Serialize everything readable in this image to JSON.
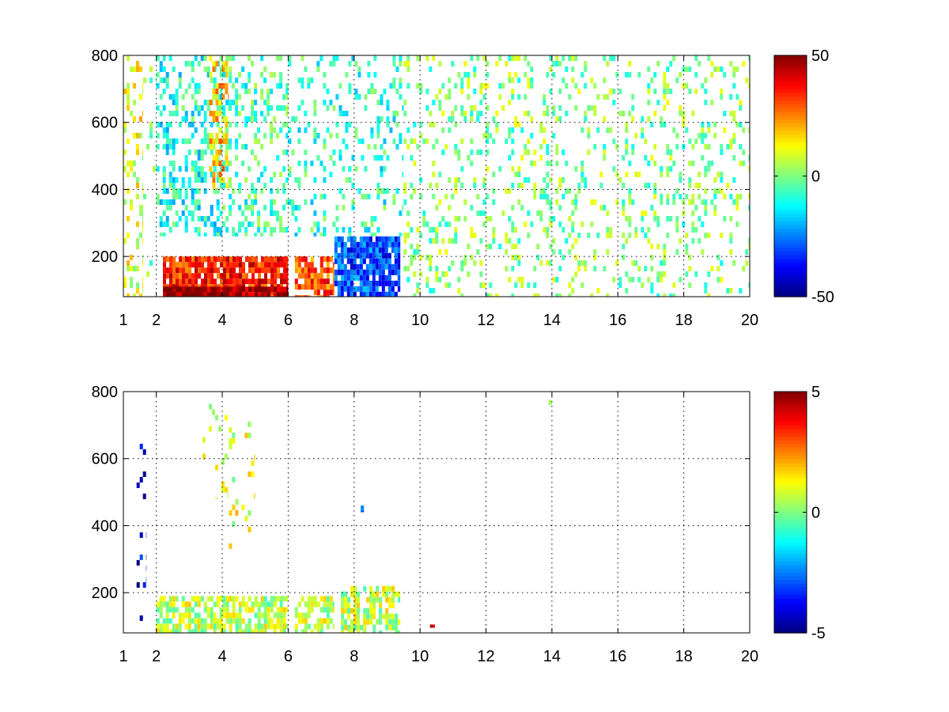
{
  "chart_data": [
    {
      "type": "heatmap",
      "title": "",
      "xlabel": "",
      "ylabel": "",
      "xlim": [
        1,
        20
      ],
      "ylim": [
        80,
        800
      ],
      "x_ticks": [
        "1",
        "2",
        "4",
        "6",
        "8",
        "10",
        "12",
        "14",
        "16",
        "18",
        "20"
      ],
      "y_ticks": [
        "200",
        "400",
        "600",
        "800"
      ],
      "grid": true,
      "colormap": "jet",
      "clim": [
        -50,
        50
      ],
      "colorbar_ticks": [
        "50",
        "0",
        "-50"
      ],
      "regions": [
        {
          "x": [
            1.0,
            1.6
          ],
          "y": [
            80,
            800
          ],
          "value": 10,
          "density": 0.3
        },
        {
          "x": [
            1.6,
            2.0
          ],
          "y": [
            80,
            800
          ],
          "value": -4,
          "density": 0.05
        },
        {
          "x": [
            2.0,
            4.0
          ],
          "y": [
            260,
            800
          ],
          "value": -10,
          "density": 0.35
        },
        {
          "x": [
            3.6,
            4.2
          ],
          "y": [
            400,
            800
          ],
          "value": 18,
          "density": 0.45
        },
        {
          "x": [
            4.0,
            6.0
          ],
          "y": [
            260,
            800
          ],
          "value": -6,
          "density": 0.3
        },
        {
          "x": [
            6.0,
            9.5
          ],
          "y": [
            260,
            800
          ],
          "value": -8,
          "density": 0.18
        },
        {
          "x": [
            9.5,
            20.0
          ],
          "y": [
            80,
            800
          ],
          "value": 0,
          "density": 0.18
        },
        {
          "x": [
            2.2,
            6.0
          ],
          "y": [
            80,
            200
          ],
          "value": 35,
          "density": 0.9
        },
        {
          "x": [
            2.2,
            6.0
          ],
          "y": [
            80,
            110
          ],
          "value": 48,
          "density": 0.95
        },
        {
          "x": [
            6.2,
            7.4
          ],
          "y": [
            80,
            200
          ],
          "value": 30,
          "density": 0.8
        },
        {
          "x": [
            7.4,
            9.4
          ],
          "y": [
            80,
            260
          ],
          "value": -30,
          "density": 0.85
        }
      ]
    },
    {
      "type": "heatmap",
      "title": "",
      "xlabel": "",
      "ylabel": "",
      "xlim": [
        1,
        20
      ],
      "ylim": [
        80,
        800
      ],
      "x_ticks": [
        "1",
        "2",
        "4",
        "6",
        "8",
        "10",
        "12",
        "14",
        "16",
        "18",
        "20"
      ],
      "y_ticks": [
        "200",
        "400",
        "600",
        "800"
      ],
      "grid": true,
      "colormap": "jet",
      "clim": [
        -5,
        5
      ],
      "colorbar_ticks": [
        "5",
        "0",
        "-5"
      ],
      "regions": [
        {
          "x": [
            1.4,
            1.7
          ],
          "y": [
            80,
            760
          ],
          "value": -4,
          "density": 0.1
        },
        {
          "x": [
            2.0,
            6.0
          ],
          "y": [
            80,
            190
          ],
          "value": 0.6,
          "density": 0.7
        },
        {
          "x": [
            6.2,
            7.4
          ],
          "y": [
            80,
            190
          ],
          "value": 0.6,
          "density": 0.6
        },
        {
          "x": [
            7.6,
            9.4
          ],
          "y": [
            80,
            220
          ],
          "value": 0.6,
          "density": 0.6
        },
        {
          "x": [
            3.4,
            4.2
          ],
          "y": [
            480,
            780
          ],
          "value": 0.5,
          "density": 0.12
        },
        {
          "x": [
            4.2,
            5.0
          ],
          "y": [
            200,
            760
          ],
          "value": 1.0,
          "density": 0.05
        },
        {
          "x": [
            8.2,
            8.3
          ],
          "y": [
            440,
            460
          ],
          "value": -3,
          "density": 1.0
        },
        {
          "x": [
            13.9,
            14.0
          ],
          "y": [
            760,
            775
          ],
          "value": 0.3,
          "density": 1.0
        },
        {
          "x": [
            10.3,
            10.45
          ],
          "y": [
            95,
            105
          ],
          "value": 3.5,
          "density": 1.0
        }
      ]
    }
  ]
}
